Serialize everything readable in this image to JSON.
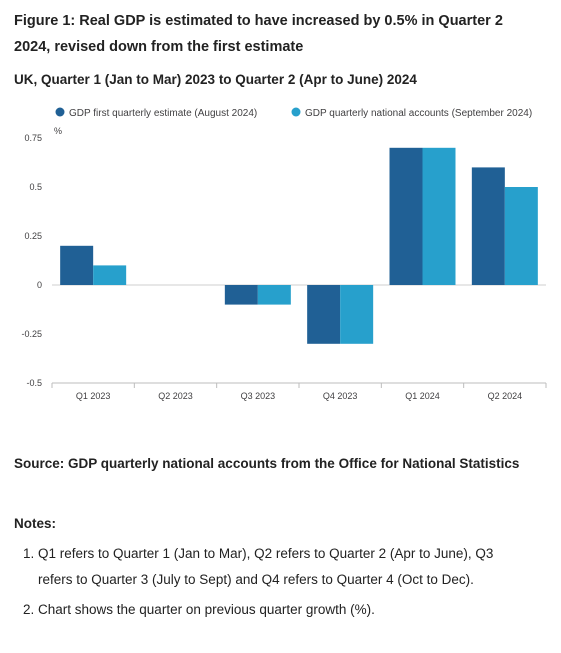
{
  "title": "Figure 1: Real GDP is estimated to have increased by 0.5% in Quarter 2 2024, revised down from the first estimate",
  "subtitle": "UK, Quarter 1 (Jan to Mar) 2023 to Quarter 2 (Apr to June) 2024",
  "chart_data": {
    "type": "bar",
    "categories": [
      "Q1 2023",
      "Q2 2023",
      "Q3 2023",
      "Q4 2023",
      "Q1 2024",
      "Q2 2024"
    ],
    "series": [
      {
        "name": "GDP first quarterly estimate (August 2024)",
        "values": [
          0.2,
          0,
          -0.1,
          -0.3,
          0.7,
          0.6
        ],
        "color": "#206095"
      },
      {
        "name": "GDP quarterly national accounts (September 2024)",
        "values": [
          0.1,
          0,
          -0.1,
          -0.3,
          0.7,
          0.5
        ],
        "color": "#27a0cc"
      }
    ],
    "ylabel": "%",
    "ylim": [
      -0.5,
      0.75
    ],
    "yticks": [
      "-0.5",
      "-0.25",
      "0",
      "0.25",
      "0.5",
      "0.75"
    ],
    "ytick_values": [
      -0.5,
      -0.25,
      0,
      0.25,
      0.5,
      0.75
    ],
    "legend": "top",
    "grid": false
  },
  "source": "Source: GDP quarterly national accounts from the Office for National Statistics",
  "notes_title": "Notes:",
  "notes": [
    "Q1 refers to Quarter 1 (Jan to Mar), Q2 refers to Quarter 2 (Apr to June), Q3 refers to Quarter 3 (July to Sept) and Q4 refers to Quarter 4 (Oct to Dec).",
    "Chart shows the quarter on previous quarter growth (%)."
  ]
}
